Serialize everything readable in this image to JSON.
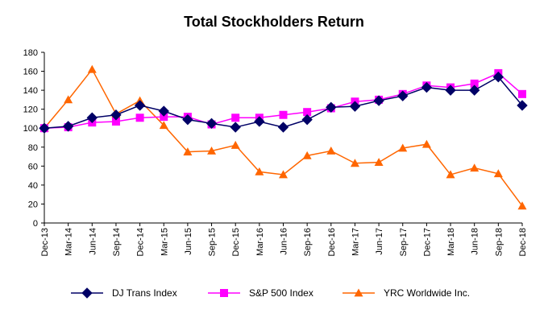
{
  "chart_data": {
    "type": "line",
    "title": "Total Stockholders Return",
    "xlabel": "",
    "ylabel": "",
    "ylim": [
      0,
      180
    ],
    "yticks": [
      0,
      20,
      40,
      60,
      80,
      100,
      120,
      140,
      160,
      180
    ],
    "grid": false,
    "legend_position": "bottom",
    "categories": [
      "Dec-13",
      "Mar-14",
      "Jun-14",
      "Sep-14",
      "Dec-14",
      "Mar-15",
      "Jun-15",
      "Sep-15",
      "Dec-15",
      "Mar-16",
      "Jun-16",
      "Sep-16",
      "Dec-16",
      "Mar-17",
      "Jun-17",
      "Sep-17",
      "Dec-17",
      "Mar-18",
      "Jun-18",
      "Sep-18",
      "Dec-18"
    ],
    "series": [
      {
        "name": "DJ Trans Index",
        "color": "#000066",
        "marker": "diamond",
        "values": [
          100,
          102,
          111,
          114,
          124,
          118,
          109,
          105,
          101,
          107,
          101,
          109,
          122,
          123,
          129,
          134,
          143,
          140,
          140,
          154,
          124
        ]
      },
      {
        "name": "S&P 500 Index",
        "color": "#ff00ff",
        "marker": "square",
        "values": [
          100,
          101,
          106,
          107,
          111,
          112,
          112,
          104,
          111,
          111,
          114,
          117,
          121,
          128,
          130,
          136,
          145,
          143,
          147,
          158,
          136
        ]
      },
      {
        "name": "YRC Worldwide Inc.",
        "color": "#ff6600",
        "marker": "triangle",
        "values": [
          100,
          130,
          162,
          115,
          129,
          103,
          75,
          76,
          82,
          54,
          51,
          71,
          76,
          63,
          64,
          79,
          83,
          51,
          58,
          52,
          18
        ]
      }
    ]
  }
}
